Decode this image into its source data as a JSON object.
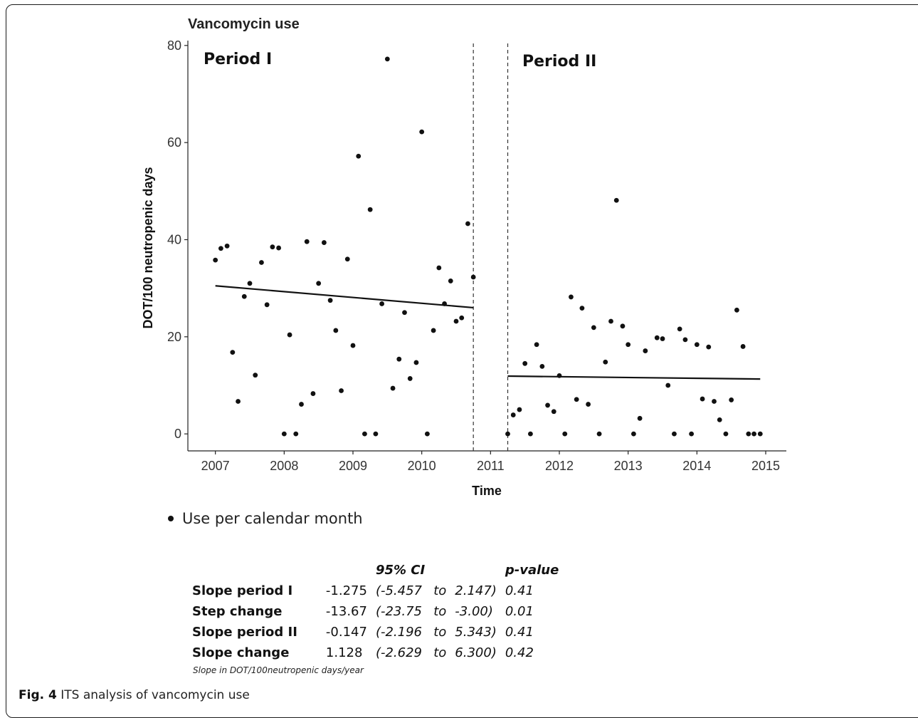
{
  "chart_data": {
    "type": "scatter",
    "title": "Vancomycin use",
    "xlabel": "Time",
    "ylabel": "DOT/100 neutropenic days",
    "xlim": [
      2006.6,
      2015.3
    ],
    "ylim": [
      -3.5,
      81
    ],
    "x_ticks": [
      2007,
      2008,
      2009,
      2010,
      2011,
      2012,
      2013,
      2014,
      2015
    ],
    "y_ticks": [
      0,
      20,
      40,
      60,
      80
    ],
    "grid": false,
    "annotations": [
      "Period I",
      "Period II"
    ],
    "interventions": [
      2010.75,
      2011.25
    ],
    "series": [
      {
        "name": "Use per calendar month",
        "points": [
          [
            2007.0,
            35.8
          ],
          [
            2007.08,
            38.2
          ],
          [
            2007.17,
            38.7
          ],
          [
            2007.25,
            16.8
          ],
          [
            2007.33,
            6.7
          ],
          [
            2007.42,
            28.3
          ],
          [
            2007.5,
            31.0
          ],
          [
            2007.58,
            12.1
          ],
          [
            2007.67,
            35.3
          ],
          [
            2007.75,
            26.6
          ],
          [
            2007.83,
            38.5
          ],
          [
            2007.92,
            38.3
          ],
          [
            2008.0,
            0
          ],
          [
            2008.08,
            20.4
          ],
          [
            2008.17,
            0
          ],
          [
            2008.25,
            6.1
          ],
          [
            2008.33,
            39.6
          ],
          [
            2008.42,
            8.3
          ],
          [
            2008.5,
            31.0
          ],
          [
            2008.58,
            39.4
          ],
          [
            2008.67,
            27.5
          ],
          [
            2008.75,
            21.3
          ],
          [
            2008.83,
            8.9
          ],
          [
            2008.92,
            36.0
          ],
          [
            2009.0,
            18.2
          ],
          [
            2009.08,
            57.2
          ],
          [
            2009.17,
            0
          ],
          [
            2009.25,
            46.2
          ],
          [
            2009.33,
            0
          ],
          [
            2009.42,
            26.8
          ],
          [
            2009.5,
            77.2
          ],
          [
            2009.58,
            9.4
          ],
          [
            2009.67,
            15.4
          ],
          [
            2009.75,
            25.0
          ],
          [
            2009.83,
            11.4
          ],
          [
            2009.92,
            14.7
          ],
          [
            2010.0,
            62.2
          ],
          [
            2010.08,
            0
          ],
          [
            2010.17,
            21.3
          ],
          [
            2010.25,
            34.2
          ],
          [
            2010.33,
            26.8
          ],
          [
            2010.42,
            31.5
          ],
          [
            2010.5,
            23.2
          ],
          [
            2010.58,
            23.9
          ],
          [
            2010.67,
            43.3
          ],
          [
            2010.75,
            32.3
          ],
          [
            2011.25,
            0
          ],
          [
            2011.33,
            3.9
          ],
          [
            2011.42,
            5.0
          ],
          [
            2011.5,
            14.5
          ],
          [
            2011.58,
            0
          ],
          [
            2011.67,
            18.4
          ],
          [
            2011.75,
            13.9
          ],
          [
            2011.83,
            5.9
          ],
          [
            2011.92,
            4.6
          ],
          [
            2012.0,
            12.0
          ],
          [
            2012.08,
            0
          ],
          [
            2012.17,
            28.2
          ],
          [
            2012.25,
            7.1
          ],
          [
            2012.33,
            25.9
          ],
          [
            2012.42,
            6.1
          ],
          [
            2012.5,
            21.9
          ],
          [
            2012.58,
            0
          ],
          [
            2012.67,
            14.8
          ],
          [
            2012.75,
            23.2
          ],
          [
            2012.83,
            48.1
          ],
          [
            2012.92,
            22.2
          ],
          [
            2013.0,
            18.4
          ],
          [
            2013.08,
            0
          ],
          [
            2013.17,
            3.2
          ],
          [
            2013.25,
            17.1
          ],
          [
            2013.42,
            19.8
          ],
          [
            2013.5,
            19.6
          ],
          [
            2013.58,
            10.0
          ],
          [
            2013.67,
            0
          ],
          [
            2013.75,
            21.6
          ],
          [
            2013.83,
            19.4
          ],
          [
            2013.92,
            0
          ],
          [
            2014.0,
            18.4
          ],
          [
            2014.08,
            7.2
          ],
          [
            2014.17,
            17.9
          ],
          [
            2014.25,
            6.7
          ],
          [
            2014.33,
            2.9
          ],
          [
            2014.42,
            0
          ],
          [
            2014.5,
            7.0
          ],
          [
            2014.58,
            25.5
          ],
          [
            2014.67,
            18.0
          ],
          [
            2014.75,
            0
          ],
          [
            2014.83,
            0
          ],
          [
            2014.92,
            0
          ]
        ]
      }
    ],
    "trend_lines": [
      {
        "x": [
          2007.0,
          2010.75
        ],
        "y": [
          30.5,
          26.0
        ]
      },
      {
        "x": [
          2011.25,
          2014.92
        ],
        "y": [
          11.9,
          11.3
        ]
      }
    ]
  },
  "legend": {
    "label": "Use per calendar month"
  },
  "stats": {
    "headers": {
      "ci": "95% CI",
      "p": "p-value"
    },
    "rows": [
      {
        "label": "Slope period I",
        "est": "-1.275",
        "lo": "(-5.457",
        "to": "to",
        "hi": "2.147)",
        "p": "0.41"
      },
      {
        "label": "Step change",
        "est": "-13.67",
        "lo": "(-23.75",
        "to": "to",
        "hi": "-3.00)",
        "p": "0.01"
      },
      {
        "label": "Slope period II",
        "est": "-0.147",
        "lo": "(-2.196",
        "to": "to",
        "hi": "5.343)",
        "p": "0.41"
      },
      {
        "label": "Slope change",
        "est": "1.128",
        "lo": "(-2.629",
        "to": "to",
        "hi": "6.300)",
        "p": "0.42"
      }
    ],
    "note": "Slope in DOT/100neutropenic days/year"
  },
  "caption": {
    "label": "Fig. 4",
    "text": "ITS analysis of vancomycin use"
  }
}
